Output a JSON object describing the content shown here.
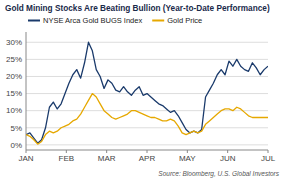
{
  "chart_data": {
    "type": "line",
    "title": "Gold Mining Stocks Are Beating Bullion (Year-to-Date Performance)",
    "annotations": [
      "Source: Bloomberg, U.S. Global Investors"
    ],
    "x": [
      0,
      0.0967741935,
      0.1935483871,
      0.2903225806,
      0.3870967742,
      0.4838709677,
      0.5806451613,
      0.6774193548,
      0.7741935484,
      0.8709677419,
      0.9677419355,
      1.064516129,
      1.1612903226,
      1.2580645161,
      1.3548387097,
      1.4516129032,
      1.5483870968,
      1.6451612903,
      1.7419354839,
      1.8387096774,
      1.935483871,
      2.0322580645,
      2.1290322581,
      2.2258064516,
      2.3225806452,
      2.4193548387,
      2.5161290323,
      2.6129032258,
      2.7096774194,
      2.8064516129,
      2.9032258065,
      3,
      3.0967741935,
      3.1935483871,
      3.2903225806,
      3.3870967742,
      3.4838709677,
      3.5806451613,
      3.6774193548,
      3.7741935484,
      3.8709677419,
      3.9677419355,
      4.064516129,
      4.1612903226,
      4.2580645161,
      4.3548387097,
      4.4516129032,
      4.5483870968,
      4.6451612903,
      4.7419354839,
      4.8387096774,
      4.935483871,
      5.0322580645,
      5.1290322581,
      5.2258064516,
      5.3225806452,
      5.4193548387,
      5.5161290323,
      5.6129032258,
      5.7096774194,
      5.8064516129,
      5.9032258065,
      6
    ],
    "series": [
      {
        "name": "NYSE Arca Gold BUGS Index",
        "color": "#1a3a6b",
        "values": [
          3.0,
          3.5,
          2.0,
          0.5,
          1.5,
          5.0,
          11.0,
          12.5,
          10.5,
          12.0,
          15.0,
          18.0,
          20.5,
          22.0,
          19.5,
          24.0,
          30.0,
          27.5,
          22.0,
          20.0,
          16.5,
          19.0,
          18.0,
          16.0,
          15.5,
          17.0,
          15.5,
          14.5,
          16.0,
          17.0,
          14.5,
          15.0,
          14.0,
          13.0,
          12.0,
          11.5,
          10.5,
          9.5,
          10.0,
          8.5,
          6.5,
          4.5,
          3.5,
          4.0,
          3.5,
          4.5,
          14.0,
          16.0,
          18.0,
          20.5,
          22.0,
          20.5,
          24.5,
          23.0,
          25.0,
          23.0,
          22.0,
          21.5,
          24.0,
          22.5,
          20.5,
          22.0,
          23.0
        ]
      },
      {
        "name": "Gold Price",
        "color": "#e6a800",
        "values": [
          3.0,
          2.5,
          1.5,
          0.2,
          1.0,
          3.0,
          4.0,
          3.5,
          4.0,
          5.0,
          5.5,
          6.0,
          7.0,
          7.5,
          9.0,
          11.0,
          13.0,
          15.0,
          14.0,
          12.0,
          10.0,
          9.0,
          8.0,
          7.5,
          8.0,
          8.5,
          9.0,
          10.0,
          10.0,
          9.5,
          9.0,
          8.5,
          8.0,
          8.0,
          7.5,
          7.0,
          7.0,
          7.5,
          7.0,
          5.5,
          3.5,
          3.0,
          3.5,
          4.0,
          3.5,
          4.0,
          6.0,
          7.0,
          8.0,
          9.0,
          10.0,
          10.5,
          10.5,
          10.0,
          11.0,
          10.5,
          9.5,
          8.5,
          8.0,
          8.0,
          8.0,
          8.0,
          8.0
        ]
      }
    ],
    "xlim": [
      0,
      6
    ],
    "xticks": [
      {
        "value": 0,
        "label": "JAN"
      },
      {
        "value": 1,
        "label": "FEB"
      },
      {
        "value": 2,
        "label": "MAR"
      },
      {
        "value": 3,
        "label": "APR"
      },
      {
        "value": 4,
        "label": "MAY"
      },
      {
        "value": 5,
        "label": "JUN"
      },
      {
        "value": 6,
        "label": "JUL"
      }
    ],
    "ylim": [
      -1.5,
      33
    ],
    "yticks": [
      {
        "value": 0,
        "label": "0%"
      },
      {
        "value": 5,
        "label": "5%"
      },
      {
        "value": 10,
        "label": "10%"
      },
      {
        "value": 15,
        "label": "15%"
      },
      {
        "value": 20,
        "label": "20%"
      },
      {
        "value": 25,
        "label": "25%"
      },
      {
        "value": 30,
        "label": "30%"
      }
    ],
    "grid": "y",
    "legend": "upper left"
  }
}
